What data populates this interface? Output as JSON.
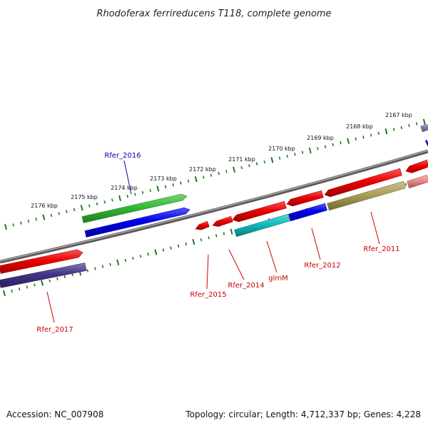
{
  "title": "Rhodoferax ferrireducens T118, complete genome",
  "footer": {
    "accession": "Accession: NC_007908",
    "summary": "Topology: circular; Length: 4,712,337 bp; Genes: 4,228"
  },
  "colors": {
    "backbone": "#7a7a7a",
    "ruler": "#1e7a1e",
    "label_red": "#cc0000",
    "label_blue": "#0000aa"
  },
  "ruler_ticks": [
    {
      "label": "2176 kbp"
    },
    {
      "label": "2175 kbp"
    },
    {
      "label": "2174 kbp"
    },
    {
      "label": "2173 kbp"
    },
    {
      "label": "2172 kbp"
    },
    {
      "label": "2171 kbp"
    },
    {
      "label": "2170 kbp"
    },
    {
      "label": "2169 kbp"
    },
    {
      "label": "2168 kbp"
    },
    {
      "label": "2167 kbp"
    }
  ],
  "genes": [
    {
      "label": "Rfer_2016",
      "label_color": "#0000aa",
      "color": "#33bb33"
    },
    {
      "label": "",
      "label_color": "",
      "color": "#0000ee"
    },
    {
      "label": "Rfer_2017",
      "label_color": "#cc0000",
      "color": "#ee0000"
    },
    {
      "label": "",
      "label_color": "",
      "color": "#443388"
    },
    {
      "label": "Rfer_2015",
      "label_color": "#cc0000",
      "color": "#ee0000"
    },
    {
      "label": "Rfer_2014",
      "label_color": "#cc0000",
      "color": "#ee0000"
    },
    {
      "label": "",
      "label_color": "",
      "color": "#ee0000"
    },
    {
      "label": "glmM",
      "label_color": "#cc0000",
      "color": "#11bbbb"
    },
    {
      "label": "",
      "label_color": "",
      "color": "#ee0000"
    },
    {
      "label": "Rfer_2012",
      "label_color": "#cc0000",
      "color": "#0000ee"
    },
    {
      "label": "",
      "label_color": "",
      "color": "#ee0000"
    },
    {
      "label": "Rfer_2011",
      "label_color": "#cc0000",
      "color": "#aaa055"
    },
    {
      "label": "",
      "label_color": "",
      "color": "#ee0000"
    },
    {
      "label": "",
      "label_color": "",
      "color": "#ee8888"
    },
    {
      "label": "",
      "label_color": "",
      "color": "#0000ee"
    },
    {
      "label": "",
      "label_color": "",
      "color": "#8877aa"
    }
  ]
}
